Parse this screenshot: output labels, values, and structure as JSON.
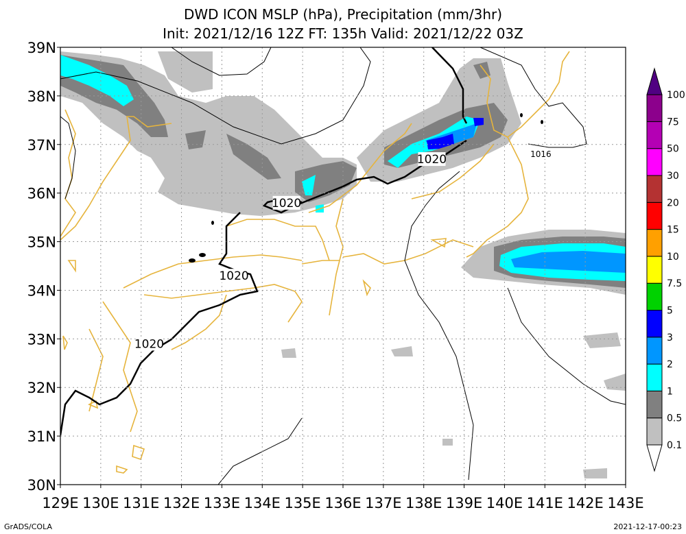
{
  "title": {
    "line1": "DWD ICON MSLP (hPa), Precipitation (mm/3hr)",
    "line2": "Init: 2021/12/16 12Z  FT: 135h  Valid: 2021/12/22 03Z"
  },
  "chart_data": {
    "type": "map",
    "lon_range": [
      129,
      143
    ],
    "lat_range": [
      30,
      39
    ],
    "x_ticks": [
      "129E",
      "130E",
      "131E",
      "132E",
      "133E",
      "134E",
      "135E",
      "136E",
      "137E",
      "138E",
      "139E",
      "140E",
      "141E",
      "142E",
      "143E"
    ],
    "y_ticks": [
      "30N",
      "31N",
      "32N",
      "33N",
      "34N",
      "35N",
      "36N",
      "37N",
      "38N",
      "39N"
    ],
    "legend": {
      "levels": [
        "0.1",
        "0.5",
        "1",
        "2",
        "3",
        "5",
        "7.5",
        "10",
        "15",
        "20",
        "30",
        "50",
        "75",
        "100"
      ],
      "colors": [
        "#ffffff",
        "#c0c0c0",
        "#808080",
        "#00ffff",
        "#0096ff",
        "#0000ff",
        "#00d200",
        "#ffff00",
        "#ffa000",
        "#ff0000",
        "#b43232",
        "#ff00ff",
        "#b400b4",
        "#8c008c",
        "#500082"
      ]
    },
    "isobar_labels": [
      {
        "text": "1020",
        "lon": 134.6,
        "lat": 35.8
      },
      {
        "text": "1020",
        "lon": 138.2,
        "lat": 36.7
      },
      {
        "text": "1020",
        "lon": 133.3,
        "lat": 34.3
      },
      {
        "text": "1020",
        "lon": 131.2,
        "lat": 32.9
      },
      {
        "text": "1016",
        "lon": 140.9,
        "lat": 36.8
      }
    ],
    "grid": true
  },
  "footer": {
    "left": "GrADS/COLA",
    "right": "2021-12-17-00:23"
  },
  "colors": {
    "coast": "#e6b43c",
    "isobar": "#000000",
    "grid": "#999999"
  }
}
